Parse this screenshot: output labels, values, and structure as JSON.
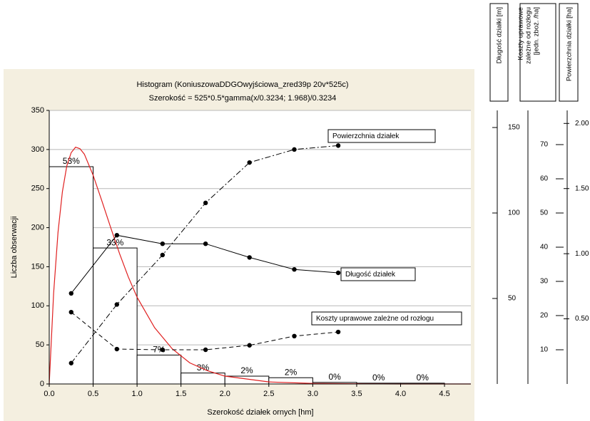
{
  "chart_data": {
    "type": "histogram",
    "title": "Histogram (KoniuszowaDDGOwyjściowa_zred39p 20v*525c)",
    "subtitle": "Szerokość = 525*0.5*gamma(x/0.3234; 1.968)/0.3234",
    "xlabel": "Szerokość działek ornych [hm]",
    "ylabel": "Liczba obserwacji",
    "bins": [
      0,
      0.5,
      1,
      1.5,
      2,
      2.5,
      3,
      3.5,
      4,
      4.5
    ],
    "counts": [
      278,
      174,
      37,
      14,
      10,
      8,
      2,
      1,
      1
    ],
    "value_labels": [
      "53%",
      "33%",
      "7%",
      "3%",
      "2%",
      "2%",
      "0%",
      "0%",
      "0%"
    ],
    "bar_color": "#ffffff",
    "xlim": [
      0,
      4.8
    ],
    "ylim": [
      0,
      350
    ],
    "xticks": [
      {
        "value": 0,
        "label": "0.0"
      },
      0.5,
      {
        "value": 1,
        "label": "1.0"
      },
      1.5,
      {
        "value": 2,
        "label": "2.0"
      },
      2.5,
      {
        "value": 3,
        "label": "3.0"
      },
      3.5,
      {
        "value": 4,
        "label": "4.0"
      },
      4.5
    ],
    "yticks": [
      0,
      50,
      100,
      150,
      200,
      250,
      300,
      350
    ],
    "grid": true,
    "curve": {
      "color": "#e02020",
      "x": [
        0,
        0.05,
        0.1,
        0.15,
        0.2,
        0.25,
        0.3,
        0.35,
        0.4,
        0.5,
        0.6,
        0.7,
        0.8,
        0.9,
        1,
        1.2,
        1.4,
        1.6,
        1.8,
        2,
        2.5,
        3,
        3.5,
        4,
        4.8
      ],
      "values": [
        0,
        116,
        194,
        246,
        279,
        296,
        303,
        301,
        294,
        267,
        234,
        200,
        167,
        137,
        111,
        72,
        45,
        27,
        17,
        10,
        2.6,
        0.7,
        0.2,
        0,
        0
      ]
    },
    "series": [
      {
        "name": "Powierzchnia działek",
        "color": "#000000",
        "dash": "dash-dot",
        "axis": 2,
        "x": [
          0.25,
          0.77,
          1.29,
          1.78,
          2.28,
          2.79,
          3.29
        ],
        "values": [
          0.16,
          0.61,
          0.99,
          1.39,
          1.7,
          1.8,
          1.83
        ]
      },
      {
        "name": "Długość działek",
        "color": "#000000",
        "dash": "solid",
        "axis": 0,
        "x": [
          0.25,
          0.77,
          1.29,
          1.78,
          2.28,
          2.79,
          3.29
        ],
        "values": [
          53,
          87,
          82,
          82,
          74,
          67,
          65
        ]
      },
      {
        "name": "Koszty uprawowe zależne od rozłogu",
        "color": "#000000",
        "dash": "dashed",
        "axis": 1,
        "x": [
          0.25,
          0.77,
          1.29,
          1.78,
          2.28,
          2.79,
          3.29
        ],
        "values": [
          21,
          10.2,
          10,
          10,
          11.3,
          14,
          15.2
        ]
      }
    ],
    "right_axes": [
      {
        "title": [
          "Długość  działki [m]"
        ],
        "ylim": [
          0,
          160
        ],
        "yticks": [
          50,
          100,
          150
        ]
      },
      {
        "title": [
          "Koszty uprawowe",
          "zależne od rozłogu",
          "[jedn. zboż. /ha]"
        ],
        "ylim": [
          0,
          80
        ],
        "yticks": [
          10,
          20,
          30,
          40,
          50,
          60,
          70
        ]
      },
      {
        "title": [
          "Powierzchnia działki [ha]"
        ],
        "ylim": [
          0,
          2.1
        ],
        "yticks": [
          {
            "value": 0.5,
            "label": "0.50"
          },
          {
            "value": 1,
            "label": "1.00"
          },
          {
            "value": 1.5,
            "label": "1.50"
          },
          {
            "value": 2,
            "label": "2.00"
          }
        ]
      }
    ]
  }
}
